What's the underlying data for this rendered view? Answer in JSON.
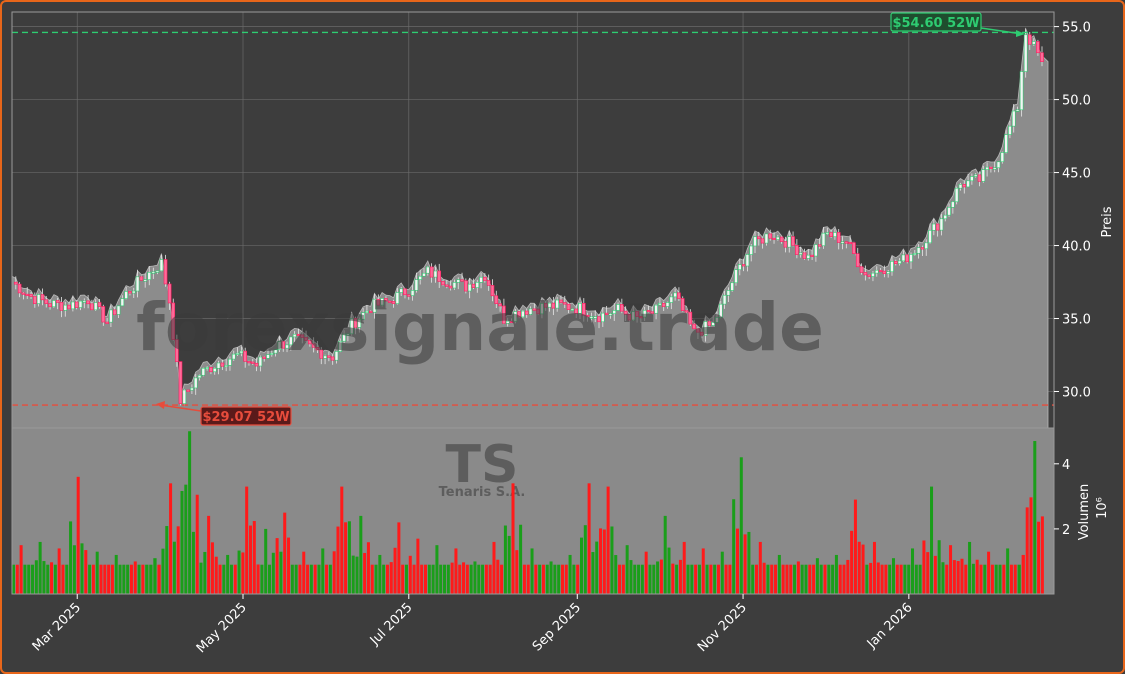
{
  "chart_data": {
    "type": "candlestick",
    "watermark": "forexsignale.trade",
    "ticker": "TS",
    "company": "Tenaris S.A.",
    "price_axis": {
      "label": "Preis",
      "ylim": [
        27.5,
        56.0
      ],
      "ticks": [
        30.0,
        35.0,
        40.0,
        45.0,
        50.0,
        55.0
      ],
      "tick_labels": [
        "30.0",
        "35.0",
        "40.0",
        "45.0",
        "50.0",
        "55.0"
      ]
    },
    "volume_axis": {
      "label": "Volumen",
      "exponent_label": "10⁶",
      "ylim": [
        0,
        5.1
      ],
      "ticks": [
        2,
        4
      ],
      "tick_labels": [
        "2",
        "4"
      ]
    },
    "x_axis": {
      "ticks": [
        "2025-03-01",
        "2025-05-01",
        "2025-07-01",
        "2025-09-01",
        "2025-11-01",
        "2026-01-01"
      ],
      "tick_labels": [
        "Mar 2025",
        "May 2025",
        "Jul 2025",
        "Sep 2025",
        "Nov 2025",
        "Jan 2026"
      ],
      "range": [
        "2025-02-05",
        "2026-02-19"
      ]
    },
    "high_52w": {
      "label": "$54.60 52W",
      "value": 54.6,
      "date": "2026-02-13"
    },
    "low_52w": {
      "label": "$29.07 52W",
      "value": 29.07,
      "date": "2025-04-08"
    },
    "last_close": 52.6,
    "price_series": [
      {
        "date": "2025-02-05",
        "close": 37.5
      },
      {
        "date": "2025-02-12",
        "close": 36.5
      },
      {
        "date": "2025-02-19",
        "close": 36.0
      },
      {
        "date": "2025-02-26",
        "close": 35.9
      },
      {
        "date": "2025-03-05",
        "close": 36.3
      },
      {
        "date": "2025-03-12",
        "close": 34.8
      },
      {
        "date": "2025-03-19",
        "close": 36.7
      },
      {
        "date": "2025-03-26",
        "close": 37.9
      },
      {
        "date": "2025-04-01",
        "close": 38.8
      },
      {
        "date": "2025-04-04",
        "close": 36.2
      },
      {
        "date": "2025-04-08",
        "close": 29.4
      },
      {
        "date": "2025-04-15",
        "close": 31.2
      },
      {
        "date": "2025-04-22",
        "close": 32.0
      },
      {
        "date": "2025-04-29",
        "close": 32.5
      },
      {
        "date": "2025-05-06",
        "close": 31.8
      },
      {
        "date": "2025-05-13",
        "close": 33.1
      },
      {
        "date": "2025-05-20",
        "close": 33.6
      },
      {
        "date": "2025-05-27",
        "close": 32.9
      },
      {
        "date": "2025-06-03",
        "close": 32.4
      },
      {
        "date": "2025-06-10",
        "close": 34.6
      },
      {
        "date": "2025-06-17",
        "close": 35.8
      },
      {
        "date": "2025-06-24",
        "close": 36.2
      },
      {
        "date": "2025-07-01",
        "close": 37.0
      },
      {
        "date": "2025-07-08",
        "close": 38.2
      },
      {
        "date": "2025-07-15",
        "close": 37.6
      },
      {
        "date": "2025-07-22",
        "close": 37.2
      },
      {
        "date": "2025-07-29",
        "close": 38.0
      },
      {
        "date": "2025-08-05",
        "close": 35.0
      },
      {
        "date": "2025-08-12",
        "close": 35.6
      },
      {
        "date": "2025-08-19",
        "close": 35.8
      },
      {
        "date": "2025-08-26",
        "close": 35.9
      },
      {
        "date": "2025-09-02",
        "close": 35.7
      },
      {
        "date": "2025-09-09",
        "close": 35.2
      },
      {
        "date": "2025-09-16",
        "close": 35.6
      },
      {
        "date": "2025-09-23",
        "close": 35.0
      },
      {
        "date": "2025-09-30",
        "close": 35.5
      },
      {
        "date": "2025-10-07",
        "close": 36.5
      },
      {
        "date": "2025-10-14",
        "close": 34.0
      },
      {
        "date": "2025-10-21",
        "close": 34.6
      },
      {
        "date": "2025-10-28",
        "close": 37.5
      },
      {
        "date": "2025-11-04",
        "close": 40.0
      },
      {
        "date": "2025-11-11",
        "close": 40.8
      },
      {
        "date": "2025-11-18",
        "close": 40.2
      },
      {
        "date": "2025-11-25",
        "close": 39.2
      },
      {
        "date": "2025-12-02",
        "close": 40.8
      },
      {
        "date": "2025-12-09",
        "close": 40.3
      },
      {
        "date": "2025-12-16",
        "close": 38.0
      },
      {
        "date": "2025-12-23",
        "close": 38.5
      },
      {
        "date": "2025-12-30",
        "close": 39.0
      },
      {
        "date": "2026-01-06",
        "close": 40.2
      },
      {
        "date": "2026-01-13",
        "close": 41.8
      },
      {
        "date": "2026-01-20",
        "close": 44.2
      },
      {
        "date": "2026-01-27",
        "close": 44.5
      },
      {
        "date": "2026-02-03",
        "close": 46.0
      },
      {
        "date": "2026-02-10",
        "close": 49.5
      },
      {
        "date": "2026-02-13",
        "close": 54.6
      },
      {
        "date": "2026-02-19",
        "close": 52.6
      }
    ],
    "volume_series": [
      {
        "date": "2025-02-05",
        "value": 1.5,
        "dir": "down"
      },
      {
        "date": "2025-02-12",
        "value": 1.6,
        "dir": "up"
      },
      {
        "date": "2025-02-19",
        "value": 1.4,
        "dir": "down"
      },
      {
        "date": "2025-02-26",
        "value": 3.6,
        "dir": "down"
      },
      {
        "date": "2025-03-05",
        "value": 1.3,
        "dir": "up"
      },
      {
        "date": "2025-03-12",
        "value": 1.2,
        "dir": "up"
      },
      {
        "date": "2025-03-19",
        "value": 1.0,
        "dir": "down"
      },
      {
        "date": "2025-03-26",
        "value": 1.1,
        "dir": "up"
      },
      {
        "date": "2025-04-01",
        "value": 3.4,
        "dir": "down"
      },
      {
        "date": "2025-04-08",
        "value": 5.0,
        "dir": "up"
      },
      {
        "date": "2025-04-15",
        "value": 2.4,
        "dir": "down"
      },
      {
        "date": "2025-04-22",
        "value": 1.2,
        "dir": "up"
      },
      {
        "date": "2025-04-29",
        "value": 3.3,
        "dir": "down"
      },
      {
        "date": "2025-05-06",
        "value": 2.0,
        "dir": "up"
      },
      {
        "date": "2025-05-13",
        "value": 2.5,
        "dir": "down"
      },
      {
        "date": "2025-05-20",
        "value": 1.3,
        "dir": "down"
      },
      {
        "date": "2025-05-27",
        "value": 1.4,
        "dir": "up"
      },
      {
        "date": "2025-06-03",
        "value": 3.3,
        "dir": "down"
      },
      {
        "date": "2025-06-10",
        "value": 2.4,
        "dir": "up"
      },
      {
        "date": "2025-06-17",
        "value": 1.2,
        "dir": "up"
      },
      {
        "date": "2025-06-24",
        "value": 2.2,
        "dir": "down"
      },
      {
        "date": "2025-07-01",
        "value": 1.7,
        "dir": "down"
      },
      {
        "date": "2025-07-08",
        "value": 1.5,
        "dir": "up"
      },
      {
        "date": "2025-07-15",
        "value": 1.4,
        "dir": "down"
      },
      {
        "date": "2025-07-22",
        "value": 1.0,
        "dir": "up"
      },
      {
        "date": "2025-07-29",
        "value": 1.6,
        "dir": "down"
      },
      {
        "date": "2025-08-05",
        "value": 3.4,
        "dir": "down"
      },
      {
        "date": "2025-08-12",
        "value": 1.4,
        "dir": "up"
      },
      {
        "date": "2025-08-19",
        "value": 1.0,
        "dir": "up"
      },
      {
        "date": "2025-08-26",
        "value": 1.2,
        "dir": "up"
      },
      {
        "date": "2025-09-02",
        "value": 3.4,
        "dir": "down"
      },
      {
        "date": "2025-09-09",
        "value": 3.3,
        "dir": "down"
      },
      {
        "date": "2025-09-16",
        "value": 1.5,
        "dir": "up"
      },
      {
        "date": "2025-09-23",
        "value": 1.3,
        "dir": "down"
      },
      {
        "date": "2025-09-30",
        "value": 2.4,
        "dir": "up"
      },
      {
        "date": "2025-10-07",
        "value": 1.6,
        "dir": "down"
      },
      {
        "date": "2025-10-14",
        "value": 1.4,
        "dir": "down"
      },
      {
        "date": "2025-10-21",
        "value": 1.3,
        "dir": "up"
      },
      {
        "date": "2025-10-28",
        "value": 4.2,
        "dir": "up"
      },
      {
        "date": "2025-11-04",
        "value": 1.6,
        "dir": "down"
      },
      {
        "date": "2025-11-11",
        "value": 1.2,
        "dir": "up"
      },
      {
        "date": "2025-11-18",
        "value": 1.0,
        "dir": "down"
      },
      {
        "date": "2025-11-25",
        "value": 1.1,
        "dir": "up"
      },
      {
        "date": "2025-12-02",
        "value": 1.2,
        "dir": "up"
      },
      {
        "date": "2025-12-09",
        "value": 2.9,
        "dir": "down"
      },
      {
        "date": "2025-12-16",
        "value": 1.6,
        "dir": "down"
      },
      {
        "date": "2025-12-23",
        "value": 1.1,
        "dir": "up"
      },
      {
        "date": "2025-12-30",
        "value": 1.4,
        "dir": "up"
      },
      {
        "date": "2026-01-06",
        "value": 3.3,
        "dir": "up"
      },
      {
        "date": "2026-01-13",
        "value": 1.5,
        "dir": "down"
      },
      {
        "date": "2026-01-20",
        "value": 1.6,
        "dir": "up"
      },
      {
        "date": "2026-01-27",
        "value": 1.3,
        "dir": "down"
      },
      {
        "date": "2026-02-03",
        "value": 1.4,
        "dir": "up"
      },
      {
        "date": "2026-02-10",
        "value": 1.2,
        "dir": "down"
      },
      {
        "date": "2026-02-13",
        "value": 4.7,
        "dir": "up"
      }
    ],
    "colors": {
      "background": "#3d3d3d",
      "price_area": "#8c8c8c",
      "grid": "#6a6a6a",
      "up": "#1a9e1a",
      "down": "#ff1a1a",
      "high_line": "#2ecc71",
      "low_line": "#e74c3c",
      "border": "#e8661a"
    },
    "grid": true
  }
}
